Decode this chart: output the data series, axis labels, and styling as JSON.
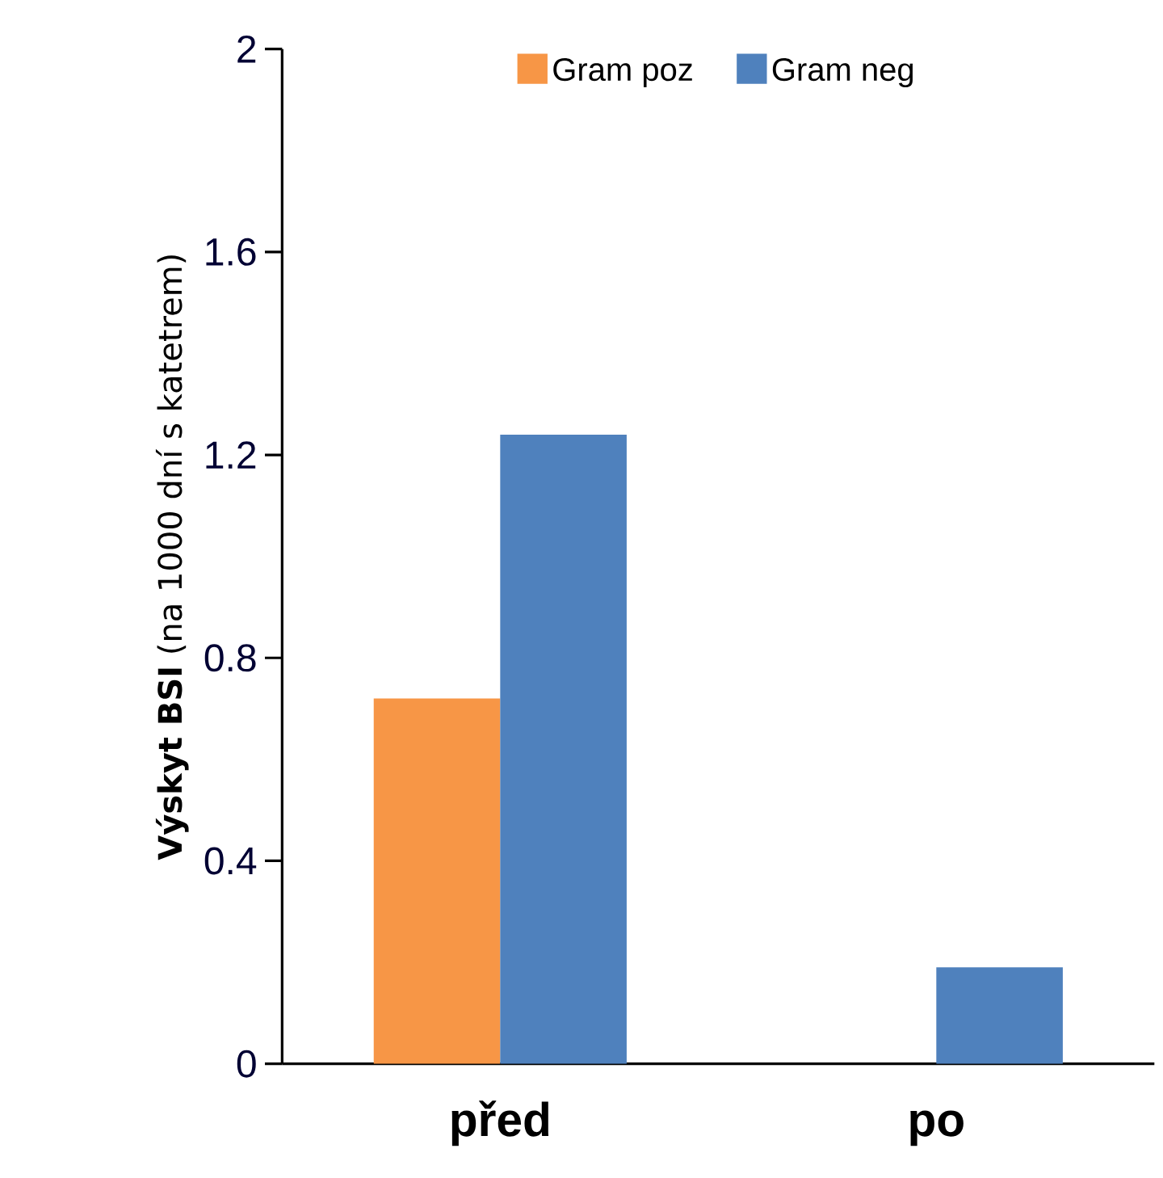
{
  "chart_data": {
    "type": "bar",
    "categories": [
      "před",
      "po"
    ],
    "ylabel": "**Výskyt BSI** (na 1000 dní s katetrem)",
    "series": [
      {
        "name": "Gram poz",
        "color": "#f79646",
        "values": [
          0.72,
          0
        ]
      },
      {
        "name": "Gram neg",
        "color": "#4f81bd",
        "values": [
          1.24,
          0.19
        ]
      }
    ],
    "ylim": [
      0,
      2
    ],
    "yticks": [
      0,
      0.4,
      0.8,
      1.2,
      1.6,
      2
    ],
    "grid": false,
    "legend": "top"
  }
}
